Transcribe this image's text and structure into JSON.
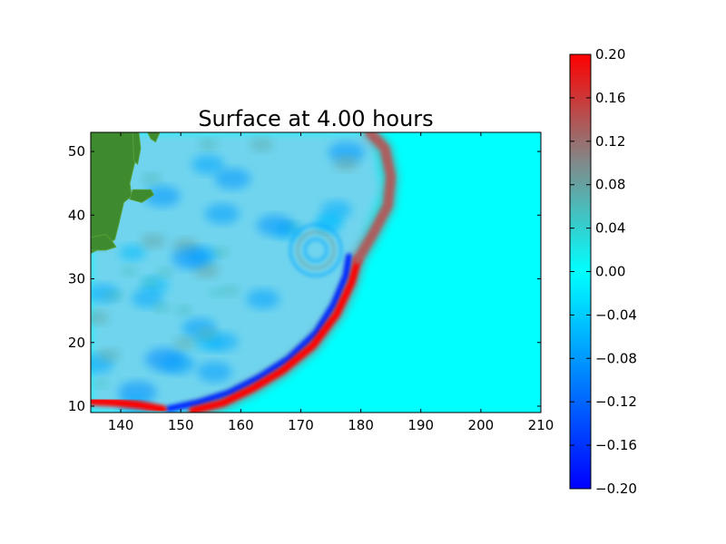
{
  "chart_data": {
    "type": "heatmap",
    "title": "Surface at 4.00 hours",
    "xlabel": "",
    "ylabel": "",
    "xlim": [
      135,
      210
    ],
    "ylim": [
      9,
      53
    ],
    "x_ticks": [
      "140",
      "150",
      "160",
      "170",
      "180",
      "190",
      "200",
      "210"
    ],
    "x_tick_values": [
      140,
      150,
      160,
      170,
      180,
      190,
      200,
      210
    ],
    "y_ticks": [
      "10",
      "20",
      "30",
      "40",
      "50"
    ],
    "y_tick_values": [
      10,
      20,
      30,
      40,
      50
    ],
    "grid": false,
    "colorbar": {
      "range": [
        -0.2,
        0.2
      ],
      "ticks": [
        "0.20",
        "0.16",
        "0.12",
        "0.08",
        "0.04",
        "0.00",
        "−0.04",
        "−0.08",
        "−0.12",
        "−0.16",
        "−0.20"
      ],
      "tick_values": [
        0.2,
        0.16,
        0.12,
        0.08,
        0.04,
        0.0,
        -0.04,
        -0.08,
        -0.12,
        -0.16,
        -0.2
      ],
      "colors": {
        "neg_max": "#0000ff",
        "zero": "#00ffff",
        "pos_mid": "#888888",
        "pos_max": "#ff0000"
      }
    },
    "land_color": "#3e8a2e",
    "leading_wave_front": {
      "description_free_points_lon_lat": [
        [
          152,
          9.3
        ],
        [
          157,
          10.5
        ],
        [
          162,
          12.8
        ],
        [
          167,
          15.6
        ],
        [
          172,
          19.5
        ],
        [
          176,
          24.5
        ],
        [
          178.5,
          29.5
        ],
        [
          179.5,
          33
        ],
        [
          182,
          37
        ],
        [
          184.5,
          41.5
        ],
        [
          185,
          46
        ],
        [
          184,
          50.5
        ],
        [
          181.5,
          53
        ]
      ],
      "amplitude": 0.2
    },
    "trailing_trough": {
      "points_lon_lat": [
        [
          148,
          9.6
        ],
        [
          153,
          10.6
        ],
        [
          158,
          12.1
        ],
        [
          163,
          14.5
        ],
        [
          168,
          17.5
        ],
        [
          172.5,
          21.5
        ],
        [
          175.5,
          26
        ],
        [
          177.5,
          30.5
        ],
        [
          178,
          33.5
        ]
      ],
      "amplitude": -0.17
    },
    "southern_front": {
      "points_lon_lat": [
        [
          135,
          10.8
        ],
        [
          139,
          10.6
        ],
        [
          143,
          10.2
        ],
        [
          147,
          9.5
        ]
      ],
      "amplitude": 0.2
    },
    "source_rings_center_lon_lat": [
      172.5,
      34.5
    ]
  }
}
